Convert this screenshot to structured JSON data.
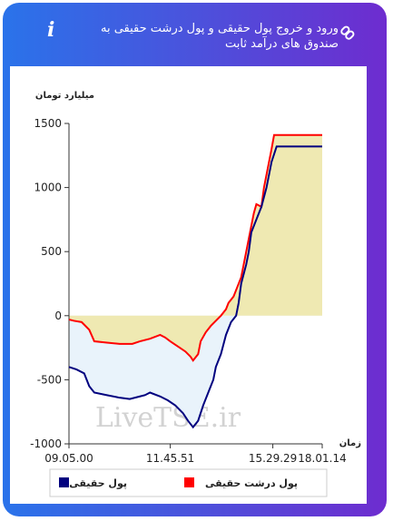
{
  "header": {
    "title": "ورود و خروج پول حقیقی و پول درشت حقیقی به صندوق های درآمد ثابت"
  },
  "chart_data": {
    "type": "line",
    "y_label": "میلیارد تومان",
    "x_label": "زمان",
    "watermark": "LiveTSE.ir",
    "xlim": [
      0,
      100
    ],
    "ylim": [
      -1000,
      1500
    ],
    "xticks": [
      {
        "value": 0,
        "label": "09.05.00"
      },
      {
        "value": 40,
        "label": "11.45.51"
      },
      {
        "value": 80.5,
        "label": "15.29.29"
      },
      {
        "value": 100,
        "label": "18.01.14"
      }
    ],
    "yticks": [
      -1000,
      -500,
      0,
      500,
      1000,
      1500
    ],
    "series": [
      {
        "name": "پول حقیقی",
        "color": "#00007f",
        "area_color": "#e9f3fb",
        "x": [
          0,
          3,
          6,
          8,
          10,
          15,
          20,
          24,
          28,
          30,
          32,
          36,
          39,
          42,
          45,
          47,
          49,
          51,
          53,
          55,
          57,
          58,
          60,
          62,
          64,
          66,
          67,
          68,
          70,
          71,
          72,
          74,
          76,
          78,
          80,
          82,
          100
        ],
        "values": [
          -400,
          -420,
          -450,
          -550,
          -600,
          -620,
          -640,
          -650,
          -630,
          -620,
          -600,
          -630,
          -660,
          -700,
          -760,
          -820,
          -870,
          -820,
          -700,
          -600,
          -500,
          -400,
          -300,
          -150,
          -50,
          0,
          100,
          250,
          400,
          500,
          650,
          750,
          850,
          1000,
          1200,
          1320,
          1320
        ]
      },
      {
        "name": "پول درشت حقیقی",
        "color": "#ff0000",
        "area_color": "#efe9b2",
        "x": [
          0,
          2,
          5,
          8,
          10,
          15,
          20,
          25,
          28,
          32,
          36,
          38,
          40,
          43,
          46,
          48,
          49,
          51,
          52,
          54,
          56,
          58,
          60,
          62,
          63,
          65,
          66,
          68,
          69,
          70,
          71,
          72,
          73,
          74,
          76,
          77,
          79,
          80,
          81,
          100
        ],
        "values": [
          -30,
          -40,
          -50,
          -110,
          -200,
          -210,
          -220,
          -220,
          -200,
          -180,
          -150,
          -170,
          -200,
          -240,
          -280,
          -320,
          -350,
          -300,
          -200,
          -130,
          -80,
          -40,
          0,
          50,
          100,
          150,
          200,
          300,
          400,
          500,
          600,
          700,
          800,
          870,
          850,
          1000,
          1200,
          1300,
          1410,
          1410
        ]
      }
    ]
  }
}
